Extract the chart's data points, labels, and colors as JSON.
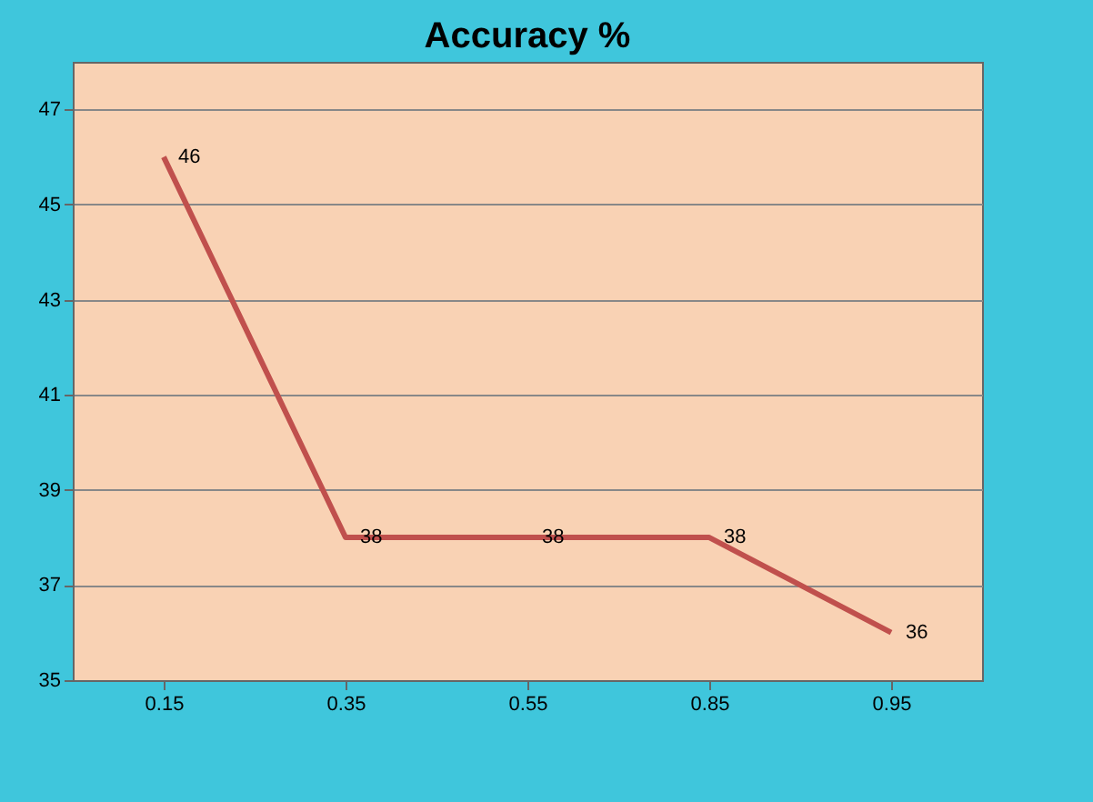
{
  "chart_data": {
    "type": "line",
    "title": "Accuracy %",
    "categories": [
      "0.15",
      "0.35",
      "0.55",
      "0.85",
      "0.95"
    ],
    "series": [
      {
        "color": "#c0504d",
        "values": [
          46,
          38,
          38,
          38,
          36
        ]
      }
    ],
    "ylim": [
      35,
      48
    ],
    "yticks": [
      35,
      37,
      39,
      41,
      43,
      45,
      47
    ],
    "grid": "y",
    "data_labels": true,
    "marker": "none",
    "line_style": "solid"
  }
}
